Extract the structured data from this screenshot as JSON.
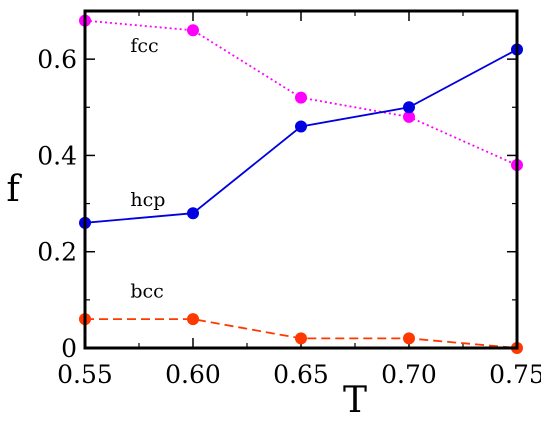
{
  "chart_data": {
    "type": "line",
    "title": "",
    "xlabel": "T",
    "ylabel": "f",
    "xlim": [
      0.55,
      0.75
    ],
    "ylim": [
      0,
      0.7
    ],
    "x_ticks": [
      "0.55",
      "0.60",
      "0.65",
      "0.70",
      "0.75"
    ],
    "y_ticks": [
      "0",
      "0.2",
      "0.4",
      "0.6"
    ],
    "x": [
      0.55,
      0.6,
      0.65,
      0.7,
      0.75
    ],
    "grid": false,
    "legend": "none",
    "series": [
      {
        "name": "fcc",
        "values": [
          0.68,
          0.66,
          0.52,
          0.48,
          0.38
        ],
        "color": "#ff00ff",
        "line_style": "dotted",
        "marker": "circle"
      },
      {
        "name": "hcp",
        "values": [
          0.26,
          0.28,
          0.46,
          0.5,
          0.62
        ],
        "color": "#0000e0",
        "line_style": "solid",
        "marker": "circle"
      },
      {
        "name": "bcc",
        "values": [
          0.06,
          0.06,
          0.02,
          0.02,
          0.0
        ],
        "color": "#ff3800",
        "line_style": "dashed",
        "marker": "circle"
      }
    ],
    "annotations": [
      {
        "text": "fcc",
        "x": 0.571,
        "y": 0.615
      },
      {
        "text": "hcp",
        "x": 0.571,
        "y": 0.295
      },
      {
        "text": "bcc",
        "x": 0.571,
        "y": 0.105
      }
    ]
  }
}
